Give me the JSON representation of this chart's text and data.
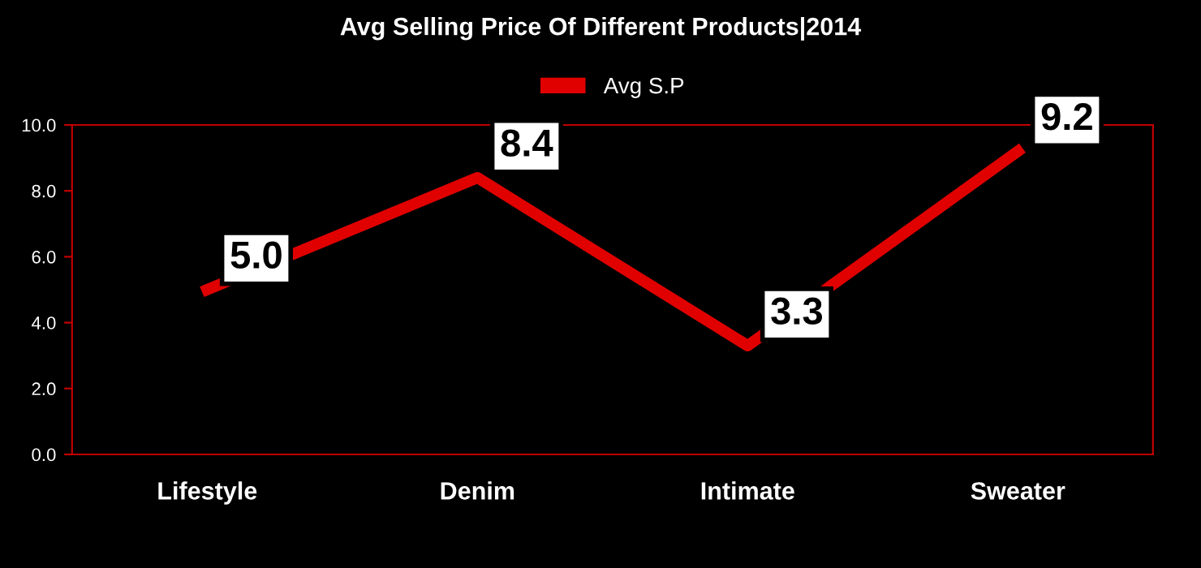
{
  "chart_data": {
    "type": "line",
    "title": "Avg Selling Price Of Different Products|2014",
    "categories": [
      "Lifestyle",
      "Denim",
      "Intimate",
      "Sweater"
    ],
    "series": [
      {
        "name": "Avg S.P",
        "color": "#e00000",
        "values": [
          5.0,
          8.4,
          3.3,
          9.2
        ],
        "value_labels": [
          "5.0",
          "8.4",
          "3.3",
          "9.2"
        ]
      }
    ],
    "ylim": [
      0,
      10
    ],
    "yticks": [
      {
        "value": 0,
        "label": "0.0"
      },
      {
        "value": 2,
        "label": "2.0"
      },
      {
        "value": 4,
        "label": "4.0"
      },
      {
        "value": 6,
        "label": "6.0"
      },
      {
        "value": 8,
        "label": "8.0"
      },
      {
        "value": 10,
        "label": "10.0"
      }
    ],
    "legend": "top",
    "grid": false,
    "line_style": "solid"
  }
}
